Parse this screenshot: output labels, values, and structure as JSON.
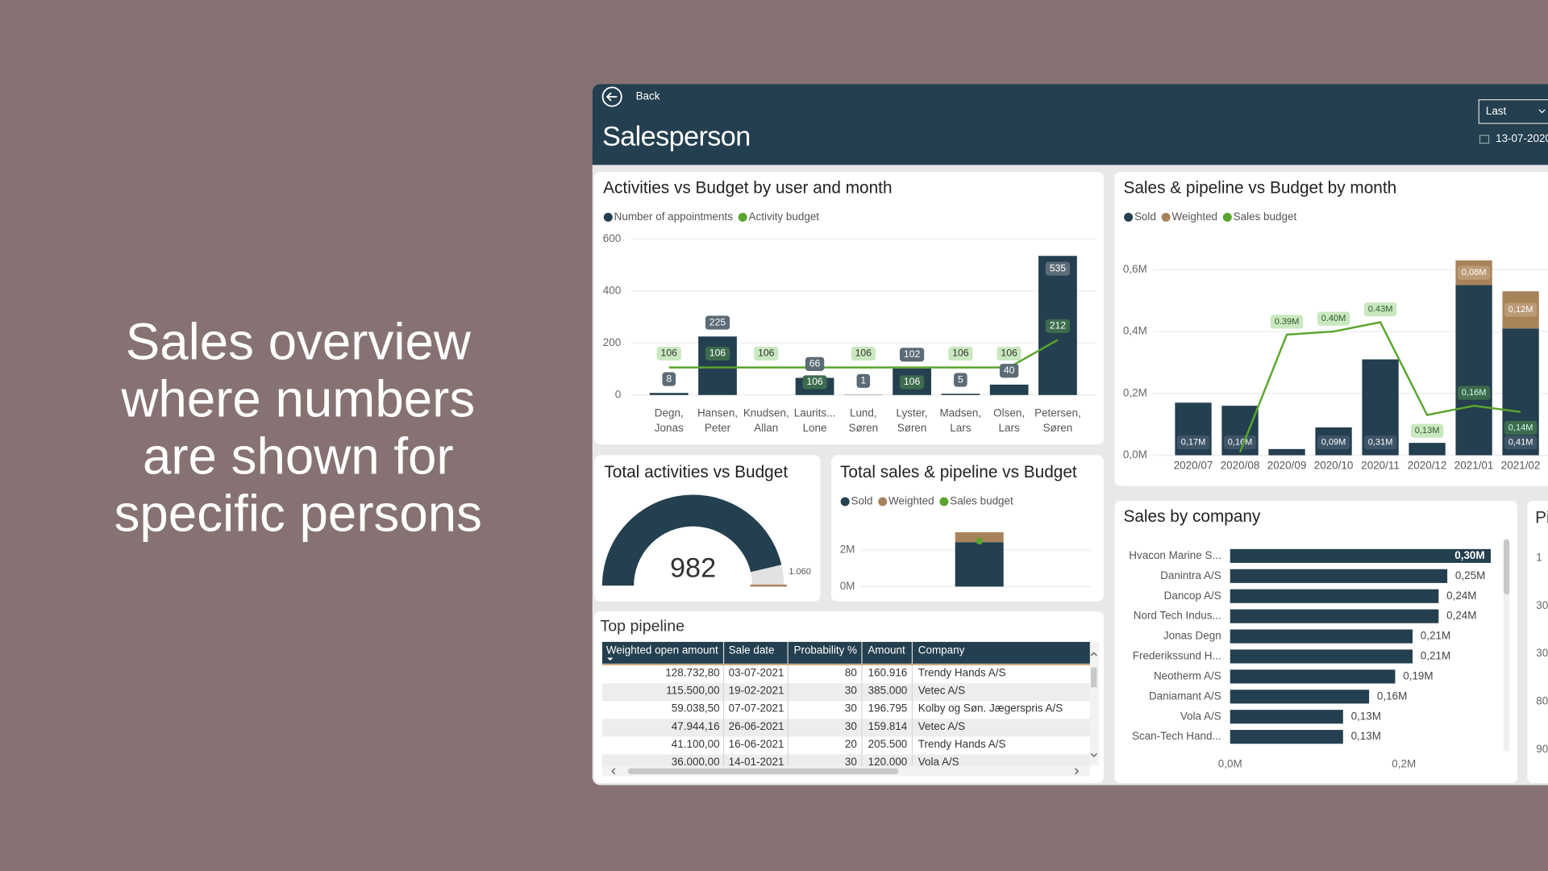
{
  "headline": {
    "lines": [
      "Sales overview",
      "where numbers",
      "are shown for",
      "specific persons"
    ]
  },
  "header": {
    "back": "Back",
    "title": "Salesperson",
    "period": "Last",
    "date": "13-07-2020"
  },
  "chart_data": [
    {
      "type": "combo",
      "title": "Activities vs Budget by user and month",
      "categories": [
        [
          "Degn,",
          "Jonas"
        ],
        [
          "Hansen,",
          "Peter"
        ],
        [
          "Knudsen,",
          "Allan"
        ],
        [
          "Laurits...",
          "Lone"
        ],
        [
          "Lund,",
          "Søren"
        ],
        [
          "Lyster,",
          "Søren"
        ],
        [
          "Madsen,",
          "Lars"
        ],
        [
          "Olsen,",
          "Lars"
        ],
        [
          "Petersen,",
          "Søren"
        ]
      ],
      "series": [
        {
          "name": "Number of appointments",
          "type": "bar",
          "color": "#243f4f",
          "values": [
            8,
            225,
            null,
            66,
            1,
            102,
            5,
            40,
            535
          ]
        },
        {
          "name": "Activity budget",
          "type": "line",
          "color": "#5aa52e",
          "values": [
            106,
            106,
            106,
            106,
            106,
            106,
            106,
            106,
            212
          ]
        }
      ],
      "ylim": [
        0,
        600
      ],
      "yticks": [
        0,
        200,
        400,
        600
      ],
      "grid": true
    },
    {
      "type": "stacked-combo",
      "title": "Sales & pipeline vs Budget by month",
      "categories": [
        "2020/07",
        "2020/08",
        "2020/09",
        "2020/10",
        "2020/11",
        "2020/12",
        "2021/01",
        "2021/02"
      ],
      "series": [
        {
          "name": "Sold",
          "type": "bar",
          "color": "#243f4f",
          "values": [
            0.17,
            0.16,
            0.02,
            0.09,
            0.31,
            0.04,
            0.55,
            0.41
          ],
          "value_labels": [
            "0,17M",
            "0,16M",
            null,
            "0,09M",
            "0,31M",
            null,
            null,
            "0,41M"
          ]
        },
        {
          "name": "Weighted",
          "type": "bar",
          "color": "#a8835a",
          "values": [
            null,
            null,
            null,
            null,
            null,
            null,
            0.08,
            0.12
          ],
          "value_labels": [
            null,
            null,
            null,
            null,
            null,
            null,
            "0,08M",
            "0,12M"
          ]
        },
        {
          "name": "Sales budget",
          "type": "line",
          "color": "#5aa52e",
          "values": [
            null,
            0.01,
            0.39,
            0.4,
            0.43,
            0.13,
            0.16,
            0.14
          ],
          "value_labels": [
            null,
            null,
            "0.39M",
            "0.40M",
            "0.43M",
            "0,13M",
            "0,16M",
            "0,14M"
          ]
        }
      ],
      "ylim": [
        0,
        0.68
      ],
      "yticks": [
        {
          "value": 0,
          "label": "0,0M"
        },
        {
          "value": 0.2,
          "label": "0,2M"
        },
        {
          "value": 0.4,
          "label": "0,4M"
        },
        {
          "value": 0.6,
          "label": "0,6M"
        }
      ],
      "grid": true
    },
    {
      "type": "gauge",
      "title": "Total activities vs Budget",
      "value": 982,
      "ylim": [
        0,
        1060
      ],
      "target": {
        "value": 1060,
        "label": "1.060"
      },
      "color": "#243f4f"
    },
    {
      "type": "stacked-combo",
      "title": "Total sales & pipeline vs Budget",
      "series": [
        {
          "name": "Sold",
          "type": "bar",
          "color": "#243f4f",
          "values": [
            2.43
          ]
        },
        {
          "name": "Weighted",
          "type": "bar",
          "color": "#a8835a",
          "values": [
            0.54
          ]
        },
        {
          "name": "Sales budget",
          "type": "dot",
          "color": "#5aa52e",
          "values": [
            2.49
          ]
        }
      ],
      "ylim": [
        0,
        3.4
      ],
      "yticks": [
        {
          "value": 0,
          "label": "0M"
        },
        {
          "value": 2,
          "label": "2M"
        }
      ],
      "grid": true
    },
    {
      "type": "hbar",
      "title": "Sales by company",
      "categories": [
        "Hvacon Marine S...",
        "Danintra A/S",
        "Dancop A/S",
        "Nord Tech Indus...",
        "Jonas Degn",
        "Frederikssund H...",
        "Neotherm A/S",
        "Daniamant A/S",
        "Vola A/S",
        "Scan-Tech Hand..."
      ],
      "values": [
        0.3,
        0.25,
        0.24,
        0.24,
        0.21,
        0.21,
        0.19,
        0.16,
        0.13,
        0.13
      ],
      "value_labels": [
        "0,30M",
        "0,25M",
        "0,24M",
        "0,24M",
        "0,21M",
        "0,21M",
        "0,19M",
        "0,16M",
        "0,13M",
        "0,13M"
      ],
      "color": "#243f4f",
      "xlim": [
        0,
        0.33
      ],
      "xticks": [
        {
          "value": 0,
          "label": "0,0M"
        },
        {
          "value": 0.2,
          "label": "0,2M"
        }
      ]
    }
  ],
  "table": {
    "title": "Top pipeline",
    "columns": [
      "Weighted open amount",
      "Sale date",
      "Probability %",
      "Amount",
      "Company"
    ],
    "rows": [
      [
        "128.732,80",
        "03-07-2021",
        "80",
        "160.916",
        "Trendy Hands A/S"
      ],
      [
        "115.500,00",
        "19-02-2021",
        "30",
        "385.000",
        "Vetec A/S"
      ],
      [
        "59.038,50",
        "07-07-2021",
        "30",
        "196.795",
        "Kolby og Søn. Jægerspris A/S"
      ],
      [
        "47.944,16",
        "26-06-2021",
        "30",
        "159.814",
        "Vetec A/S"
      ],
      [
        "41.100,00",
        "16-06-2021",
        "20",
        "205.500",
        "Trendy Hands A/S"
      ],
      [
        "36.000,00",
        "14-01-2021",
        "30",
        "120.000",
        "Vola A/S"
      ]
    ]
  },
  "partial_panel": {
    "title": "Pi",
    "labels": [
      "1",
      "30",
      "30",
      "80",
      "90"
    ]
  }
}
